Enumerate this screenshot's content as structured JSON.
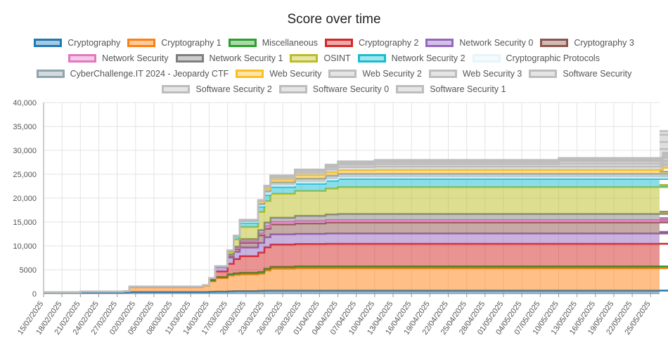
{
  "chart_data": {
    "type": "area",
    "title": "Score over time",
    "xlabel": "",
    "ylabel": "",
    "ylim": [
      0,
      40000
    ],
    "y_ticks": [
      "0",
      "5000",
      "10,000",
      "15,000",
      "20,000",
      "25,000",
      "30,000",
      "35,000",
      "40,000"
    ],
    "x_ticks": [
      "15/02/2025",
      "18/02/2025",
      "21/02/2025",
      "24/02/2025",
      "27/02/2025",
      "02/03/2025",
      "05/03/2025",
      "08/03/2025",
      "11/03/2025",
      "14/03/2025",
      "17/03/2025",
      "20/03/2025",
      "23/03/2025",
      "26/03/2025",
      "29/03/2025",
      "01/04/2025",
      "04/04/2025",
      "07/04/2025",
      "10/04/2025",
      "13/04/2025",
      "16/04/2025",
      "19/04/2025",
      "22/04/2025",
      "25/04/2025",
      "28/04/2025",
      "01/05/2025",
      "04/05/2025",
      "07/05/2025",
      "10/05/2025",
      "13/05/2025",
      "16/05/2025",
      "19/05/2025",
      "22/05/2025",
      "25/05/2025"
    ],
    "x": [
      "15/02/2025",
      "21/02/2025",
      "28/02/2025",
      "01/03/2025",
      "13/03/2025",
      "14/03/2025",
      "15/03/2025",
      "17/03/2025",
      "18/03/2025",
      "19/03/2025",
      "22/03/2025",
      "23/03/2025",
      "24/03/2025",
      "28/03/2025",
      "02/04/2025",
      "04/04/2025",
      "10/04/2025",
      "10/05/2025",
      "27/05/2025",
      "28/05/2025"
    ],
    "grid": true,
    "legend_position": "top",
    "stacked": true,
    "series": [
      {
        "name": "Cryptography",
        "color": "#1f77b4",
        "values": [
          200,
          250,
          300,
          350,
          350,
          400,
          450,
          500,
          550,
          550,
          600,
          650,
          650,
          650,
          650,
          650,
          650,
          650,
          650,
          650
        ]
      },
      {
        "name": "Cryptography 1",
        "color": "#ff7f0e",
        "values": [
          100,
          150,
          200,
          1000,
          1300,
          2200,
          2800,
          3300,
          3400,
          3500,
          3600,
          4200,
          4600,
          4700,
          4700,
          4700,
          4700,
          4700,
          4700,
          4700
        ]
      },
      {
        "name": "Miscellaneous",
        "color": "#2ca02c",
        "values": [
          0,
          50,
          50,
          100,
          100,
          150,
          200,
          250,
          300,
          300,
          300,
          350,
          350,
          350,
          350,
          350,
          350,
          350,
          350,
          350
        ]
      },
      {
        "name": "Cryptography 2",
        "color": "#d62728",
        "values": [
          0,
          0,
          0,
          0,
          0,
          300,
          1200,
          2200,
          3000,
          3500,
          4100,
          4500,
          4700,
          4700,
          4750,
          4750,
          4750,
          4750,
          4750,
          4750
        ]
      },
      {
        "name": "Network Security 0",
        "color": "#9467bd",
        "values": [
          0,
          0,
          0,
          0,
          0,
          200,
          900,
          1300,
          1500,
          1800,
          2000,
          2100,
          2100,
          2100,
          2150,
          2150,
          2150,
          2150,
          2150,
          2500
        ]
      },
      {
        "name": "Cryptography 3",
        "color": "#8c564b",
        "values": [
          0,
          0,
          0,
          0,
          0,
          0,
          200,
          400,
          600,
          1000,
          1600,
          1800,
          2100,
          2200,
          2300,
          2300,
          2300,
          2300,
          2300,
          2400
        ]
      },
      {
        "name": "Network Security",
        "color": "#e377c2",
        "values": [
          0,
          0,
          0,
          0,
          0,
          0,
          0,
          100,
          200,
          300,
          400,
          500,
          500,
          500,
          500,
          500,
          500,
          500,
          500,
          500
        ]
      },
      {
        "name": "Network Security 1",
        "color": "#7f7f7f",
        "values": [
          0,
          0,
          0,
          0,
          0,
          0,
          0,
          200,
          300,
          500,
          700,
          800,
          900,
          1100,
          1200,
          1300,
          1300,
          1300,
          1300,
          1300
        ]
      },
      {
        "name": "OSINT",
        "color": "#bcbd22",
        "values": [
          0,
          0,
          0,
          0,
          0,
          0,
          0,
          500,
          1500,
          2500,
          3800,
          4500,
          5000,
          5200,
          5400,
          5600,
          5600,
          5600,
          5600,
          5600
        ]
      },
      {
        "name": "Network Security 2",
        "color": "#17becf",
        "values": [
          0,
          0,
          0,
          0,
          0,
          0,
          0,
          300,
          600,
          900,
          1100,
          1200,
          1400,
          1500,
          1600,
          1700,
          1700,
          1700,
          1700,
          1700
        ]
      },
      {
        "name": "Cryptographic Protocols",
        "color": "#e6f4fb",
        "values": [
          0,
          0,
          0,
          0,
          0,
          0,
          0,
          0,
          100,
          200,
          300,
          400,
          400,
          400,
          400,
          400,
          400,
          400,
          400,
          400
        ]
      },
      {
        "name": "CyberChallenge.IT 2024 - Jeopardy CTF",
        "color": "#90a4ae",
        "values": [
          0,
          0,
          0,
          0,
          0,
          0,
          0,
          0,
          100,
          200,
          300,
          500,
          600,
          700,
          700,
          700,
          700,
          700,
          700,
          700
        ]
      },
      {
        "name": "Web Security",
        "color": "#fbbf24",
        "values": [
          0,
          0,
          0,
          0,
          0,
          0,
          0,
          0,
          0,
          200,
          500,
          500,
          600,
          700,
          700,
          700,
          800,
          800,
          1200,
          1300
        ]
      },
      {
        "name": "Web Security 2",
        "color": "#bdbdbd",
        "values": [
          0,
          0,
          0,
          0,
          0,
          0,
          0,
          0,
          0,
          0,
          200,
          300,
          400,
          500,
          600,
          700,
          700,
          700,
          800,
          800
        ]
      },
      {
        "name": "Web Security 3",
        "color": "#bdbdbd",
        "values": [
          0,
          0,
          0,
          0,
          0,
          0,
          0,
          0,
          0,
          0,
          100,
          200,
          300,
          400,
          400,
          500,
          500,
          600,
          700,
          800
        ]
      },
      {
        "name": "Software Security",
        "color": "#bdbdbd",
        "values": [
          0,
          0,
          0,
          0,
          0,
          0,
          0,
          0,
          0,
          0,
          0,
          100,
          100,
          200,
          300,
          300,
          400,
          500,
          700,
          1800
        ]
      },
      {
        "name": "Software Security 2",
        "color": "#bdbdbd",
        "values": [
          0,
          0,
          0,
          0,
          0,
          0,
          0,
          0,
          0,
          0,
          0,
          0,
          0,
          100,
          200,
          200,
          200,
          200,
          300,
          1500
        ]
      },
      {
        "name": "Software Security 0",
        "color": "#bdbdbd",
        "values": [
          0,
          0,
          0,
          0,
          0,
          0,
          0,
          0,
          0,
          0,
          0,
          0,
          0,
          0,
          100,
          100,
          200,
          300,
          400,
          1500
        ]
      },
      {
        "name": "Software Security 1",
        "color": "#bdbdbd",
        "values": [
          0,
          0,
          0,
          0,
          0,
          0,
          0,
          0,
          0,
          0,
          0,
          0,
          0,
          0,
          0,
          100,
          100,
          200,
          300,
          800
        ]
      }
    ]
  }
}
